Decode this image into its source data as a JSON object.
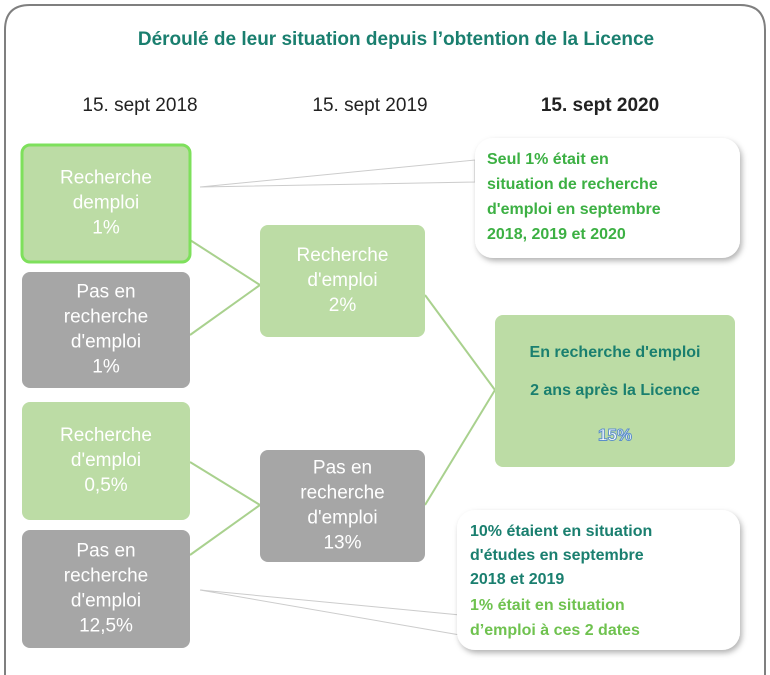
{
  "title": "Déroulé de leur situation depuis l’obtention de la Licence",
  "dates": [
    "15. sept 2018",
    "15. sept 2019",
    "15. sept 2020"
  ],
  "boxes": [
    {
      "lines": [
        "Recherche",
        "demploi",
        "1%"
      ]
    },
    {
      "lines": [
        "Pas en",
        "recherche",
        "d'emploi",
        "1%"
      ]
    },
    {
      "lines": [
        "Recherche",
        "d'emploi",
        "0,5%"
      ]
    },
    {
      "lines": [
        "Pas en",
        "recherche",
        "d'emploi",
        "12,5%"
      ]
    },
    {
      "lines": [
        "Recherche",
        "d'emploi",
        "2%"
      ]
    },
    {
      "lines": [
        "Pas en",
        "recherche",
        "d'emploi",
        "13%"
      ]
    }
  ],
  "result": {
    "lines": [
      "En recherche d'emploi",
      "2 ans après la Licence"
    ],
    "value": "15%"
  },
  "callouts": [
    {
      "lines": [
        "Seul 1% était en",
        "situation de recherche",
        "d'emploi en septembre",
        "2018, 2019 et 2020"
      ]
    },
    {
      "lines": [
        "10% étaient en situation",
        "d'études en septembre",
        "2018 et 2019"
      ],
      "extra": [
        "1% était en situation",
        "d’emploi à ces 2 dates"
      ]
    }
  ]
}
